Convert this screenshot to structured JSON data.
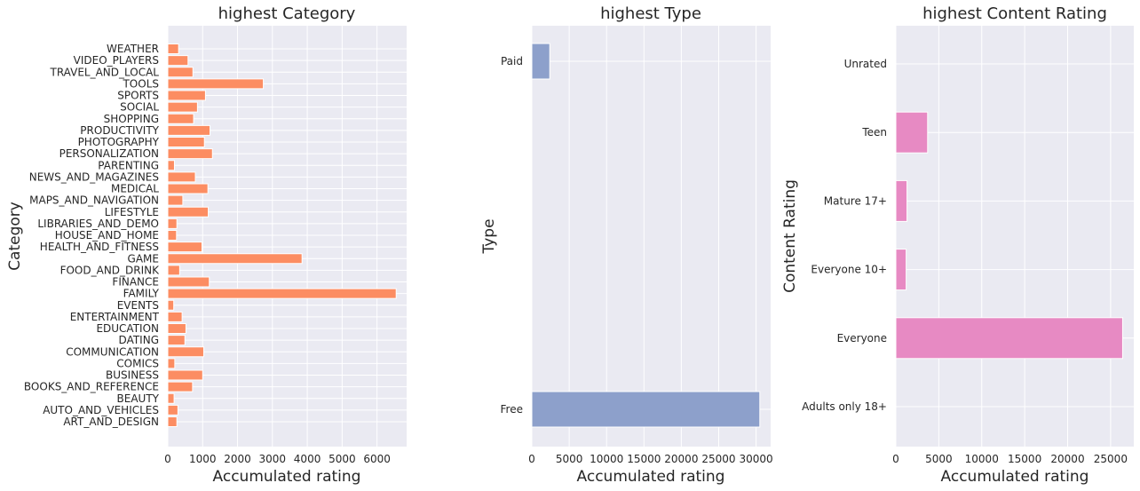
{
  "chart_data": [
    {
      "type": "bar",
      "orientation": "horizontal",
      "title": "highest Category",
      "xlabel": "Accumulated rating",
      "ylabel": "Category",
      "xlim": [
        0,
        6850
      ],
      "xticks": [
        0,
        1000,
        2000,
        3000,
        4000,
        5000,
        6000
      ],
      "grid": true,
      "color": "#fc8d62",
      "categories": [
        "ART_AND_DESIGN",
        "AUTO_AND_VEHICLES",
        "BEAUTY",
        "BOOKS_AND_REFERENCE",
        "BUSINESS",
        "COMICS",
        "COMMUNICATION",
        "DATING",
        "EDUCATION",
        "ENTERTAINMENT",
        "EVENTS",
        "FAMILY",
        "FINANCE",
        "FOOD_AND_DRINK",
        "GAME",
        "HEALTH_AND_FITNESS",
        "HOUSE_AND_HOME",
        "LIBRARIES_AND_DEMO",
        "LIFESTYLE",
        "MAPS_AND_NAVIGATION",
        "MEDICAL",
        "NEWS_AND_MAGAZINES",
        "PARENTING",
        "PERSONALIZATION",
        "PHOTOGRAPHY",
        "PRODUCTIVITY",
        "SHOPPING",
        "SOCIAL",
        "SPORTS",
        "TOOLS",
        "TRAVEL_AND_LOCAL",
        "VIDEO_PLAYERS",
        "WEATHER"
      ],
      "values": [
        260,
        290,
        180,
        710,
        1000,
        200,
        1030,
        490,
        520,
        410,
        170,
        6550,
        1190,
        340,
        3850,
        980,
        250,
        260,
        1160,
        430,
        1150,
        790,
        190,
        1280,
        1050,
        1210,
        740,
        850,
        1080,
        2740,
        720,
        580,
        310
      ]
    },
    {
      "type": "bar",
      "orientation": "horizontal",
      "title": "highest Type",
      "xlabel": "Accumulated rating",
      "ylabel": "Type",
      "xlim": [
        0,
        31950
      ],
      "xticks": [
        0,
        5000,
        10000,
        15000,
        20000,
        25000,
        30000
      ],
      "grid": true,
      "color": "#8da0cb",
      "categories": [
        "Free",
        "Paid"
      ],
      "values": [
        30500,
        2400
      ]
    },
    {
      "type": "bar",
      "orientation": "horizontal",
      "title": "highest Content Rating",
      "xlabel": "Accumulated rating",
      "ylabel": "Content Rating",
      "xlim": [
        0,
        27700
      ],
      "xticks": [
        0,
        5000,
        10000,
        15000,
        20000,
        25000
      ],
      "grid": true,
      "color": "#e78ac3",
      "categories": [
        "Adults only 18+",
        "Everyone",
        "Everyone 10+",
        "Mature 17+",
        "Teen",
        "Unrated"
      ],
      "values": [
        0,
        26400,
        1200,
        1300,
        3700,
        0
      ]
    }
  ]
}
